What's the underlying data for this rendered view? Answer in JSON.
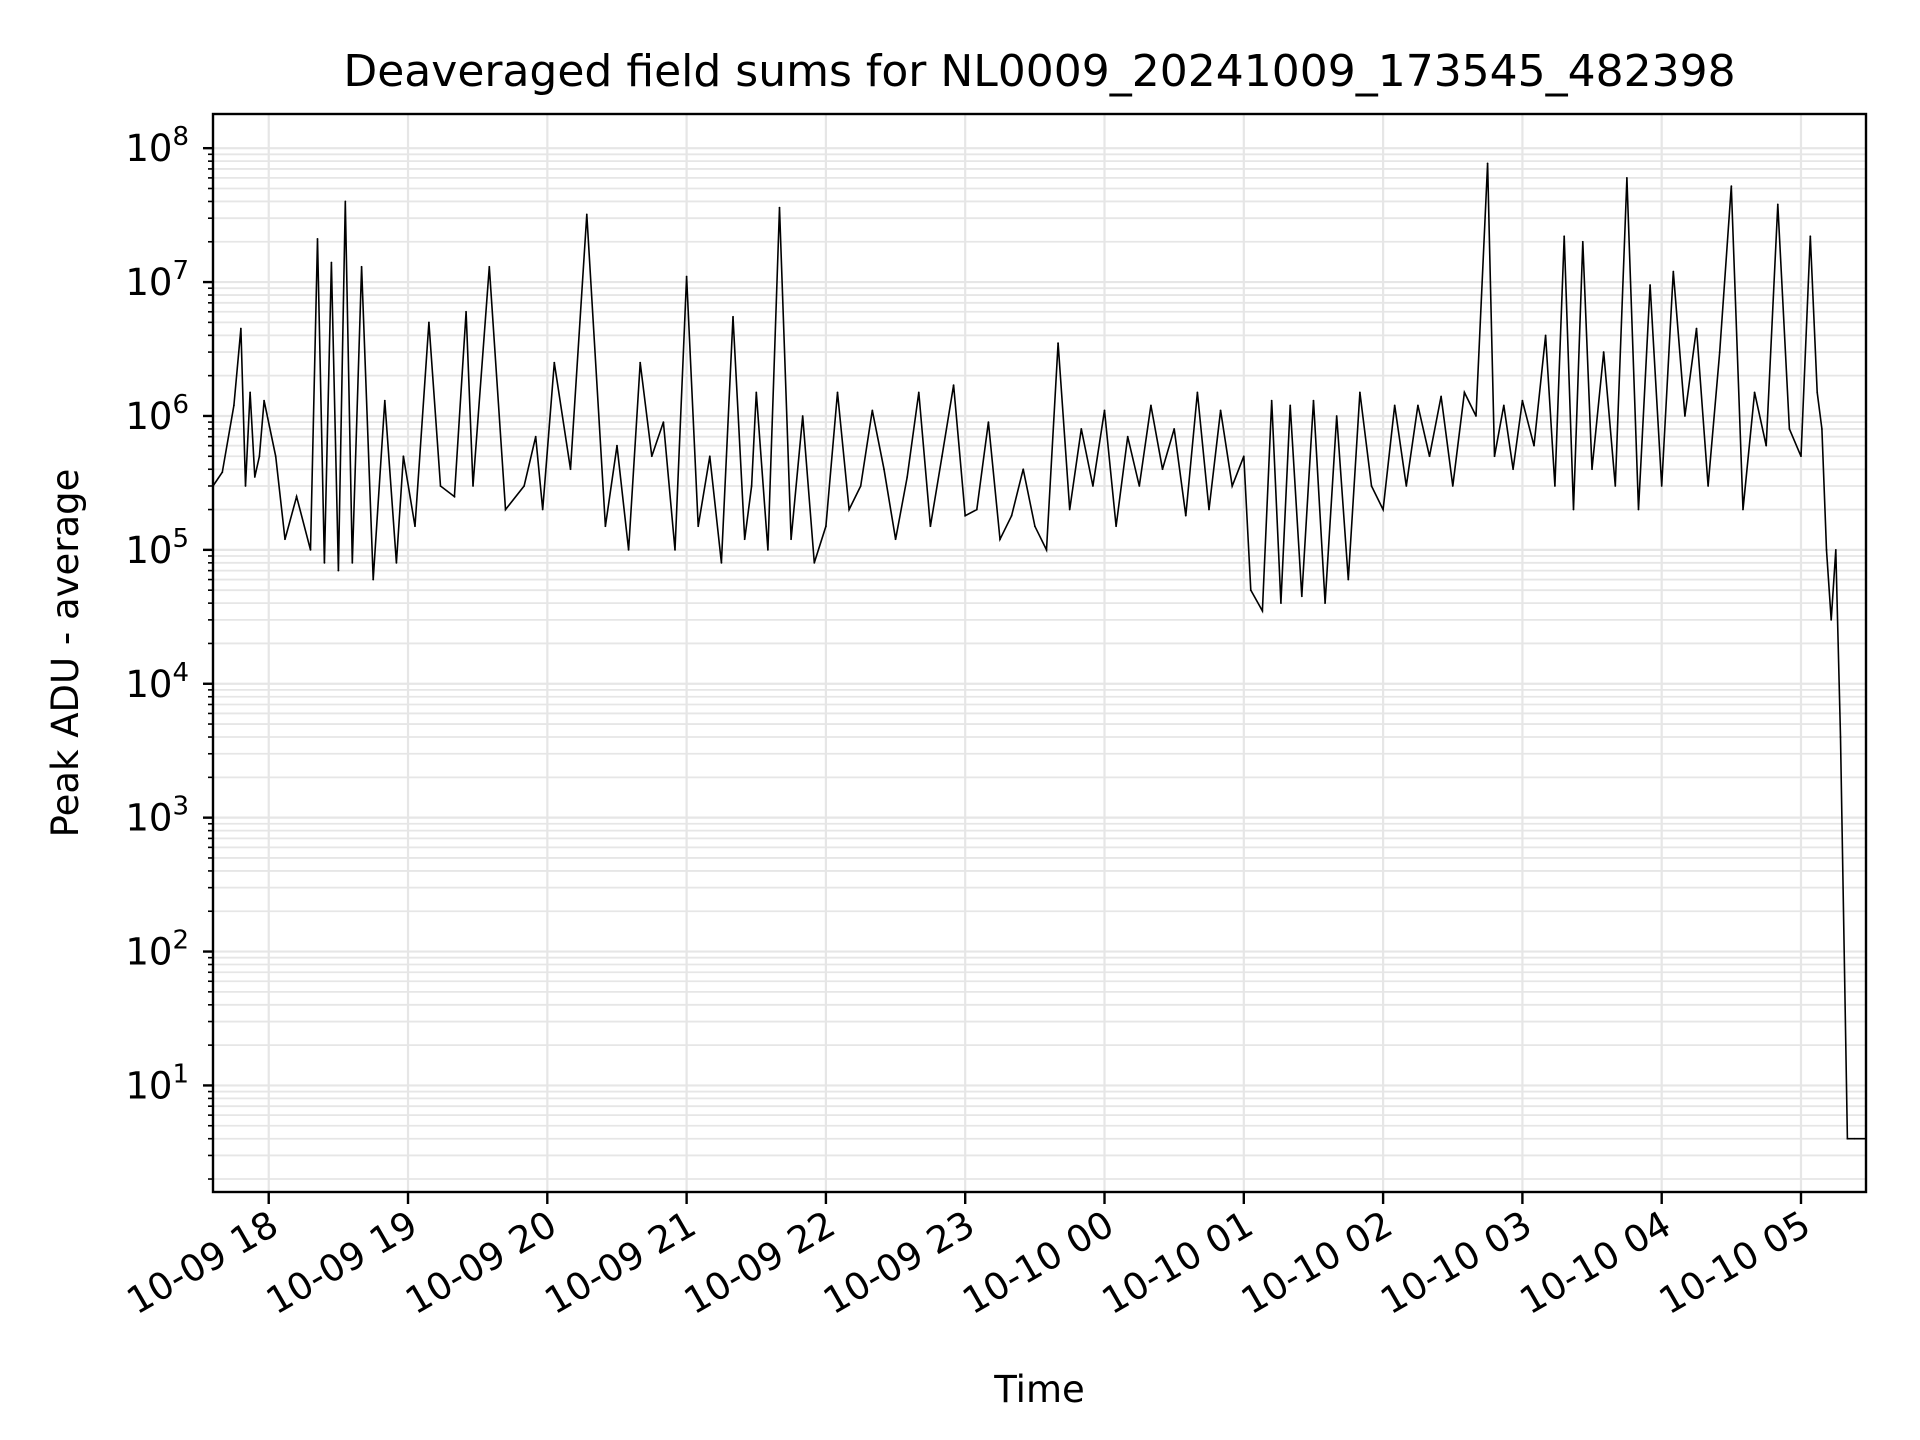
{
  "chart_data": {
    "type": "line",
    "title": "Deaveraged field sums for NL0009_20241009_173545_482398",
    "xlabel": "Time",
    "ylabel": "Peak ADU - average",
    "yscale": "log",
    "ylim": [
      1.6,
      180000000
    ],
    "xlim": [
      "2024-10-09 17:36",
      "2024-10-10 05:28"
    ],
    "grid": true,
    "line_color": "#000000",
    "grid_color": "#e6e6e6",
    "x_ticks": [
      {
        "label": "10-09 18",
        "t": "2024-10-09 18:00"
      },
      {
        "label": "10-09 19",
        "t": "2024-10-09 19:00"
      },
      {
        "label": "10-09 20",
        "t": "2024-10-09 20:00"
      },
      {
        "label": "10-09 21",
        "t": "2024-10-09 21:00"
      },
      {
        "label": "10-09 22",
        "t": "2024-10-09 22:00"
      },
      {
        "label": "10-09 23",
        "t": "2024-10-09 23:00"
      },
      {
        "label": "10-10 00",
        "t": "2024-10-10 00:00"
      },
      {
        "label": "10-10 01",
        "t": "2024-10-10 01:00"
      },
      {
        "label": "10-10 02",
        "t": "2024-10-10 02:00"
      },
      {
        "label": "10-10 03",
        "t": "2024-10-10 03:00"
      },
      {
        "label": "10-10 04",
        "t": "2024-10-10 04:00"
      },
      {
        "label": "10-10 05",
        "t": "2024-10-10 05:00"
      }
    ],
    "y_ticks": [
      {
        "base": "10",
        "exp": "1",
        "value": 10
      },
      {
        "base": "10",
        "exp": "2",
        "value": 100
      },
      {
        "base": "10",
        "exp": "3",
        "value": 1000
      },
      {
        "base": "10",
        "exp": "4",
        "value": 10000
      },
      {
        "base": "10",
        "exp": "5",
        "value": 100000
      },
      {
        "base": "10",
        "exp": "6",
        "value": 1000000
      },
      {
        "base": "10",
        "exp": "7",
        "value": 10000000
      },
      {
        "base": "10",
        "exp": "8",
        "value": 100000000
      }
    ],
    "series": [
      {
        "x": [
          "2024-10-09 17:36",
          "2024-10-09 17:40",
          "2024-10-09 17:45",
          "2024-10-09 17:48",
          "2024-10-09 17:50",
          "2024-10-09 17:52",
          "2024-10-09 17:54",
          "2024-10-09 17:56",
          "2024-10-09 17:58",
          "2024-10-09 18:03",
          "2024-10-09 18:07",
          "2024-10-09 18:12",
          "2024-10-09 18:18",
          "2024-10-09 18:21",
          "2024-10-09 18:24",
          "2024-10-09 18:27",
          "2024-10-09 18:30",
          "2024-10-09 18:33",
          "2024-10-09 18:36",
          "2024-10-09 18:40",
          "2024-10-09 18:45",
          "2024-10-09 18:50",
          "2024-10-09 18:55",
          "2024-10-09 18:58",
          "2024-10-09 19:03",
          "2024-10-09 19:09",
          "2024-10-09 19:14",
          "2024-10-09 19:20",
          "2024-10-09 19:25",
          "2024-10-09 19:28",
          "2024-10-09 19:35",
          "2024-10-09 19:42",
          "2024-10-09 19:50",
          "2024-10-09 19:55",
          "2024-10-09 19:58",
          "2024-10-09 20:03",
          "2024-10-09 20:10",
          "2024-10-09 20:17",
          "2024-10-09 20:25",
          "2024-10-09 20:30",
          "2024-10-09 20:35",
          "2024-10-09 20:40",
          "2024-10-09 20:45",
          "2024-10-09 20:50",
          "2024-10-09 20:55",
          "2024-10-09 21:00",
          "2024-10-09 21:05",
          "2024-10-09 21:10",
          "2024-10-09 21:15",
          "2024-10-09 21:20",
          "2024-10-09 21:25",
          "2024-10-09 21:28",
          "2024-10-09 21:30",
          "2024-10-09 21:35",
          "2024-10-09 21:40",
          "2024-10-09 21:45",
          "2024-10-09 21:50",
          "2024-10-09 21:55",
          "2024-10-09 22:00",
          "2024-10-09 22:05",
          "2024-10-09 22:10",
          "2024-10-09 22:15",
          "2024-10-09 22:20",
          "2024-10-09 22:25",
          "2024-10-09 22:30",
          "2024-10-09 22:35",
          "2024-10-09 22:40",
          "2024-10-09 22:45",
          "2024-10-09 22:50",
          "2024-10-09 22:55",
          "2024-10-09 23:00",
          "2024-10-09 23:05",
          "2024-10-09 23:10",
          "2024-10-09 23:15",
          "2024-10-09 23:20",
          "2024-10-09 23:25",
          "2024-10-09 23:30",
          "2024-10-09 23:35",
          "2024-10-09 23:40",
          "2024-10-09 23:45",
          "2024-10-09 23:50",
          "2024-10-09 23:55",
          "2024-10-10 00:00",
          "2024-10-10 00:05",
          "2024-10-10 00:10",
          "2024-10-10 00:15",
          "2024-10-10 00:20",
          "2024-10-10 00:25",
          "2024-10-10 00:30",
          "2024-10-10 00:35",
          "2024-10-10 00:40",
          "2024-10-10 00:45",
          "2024-10-10 00:50",
          "2024-10-10 00:55",
          "2024-10-10 01:00",
          "2024-10-10 01:03",
          "2024-10-10 01:08",
          "2024-10-10 01:12",
          "2024-10-10 01:16",
          "2024-10-10 01:20",
          "2024-10-10 01:25",
          "2024-10-10 01:30",
          "2024-10-10 01:35",
          "2024-10-10 01:40",
          "2024-10-10 01:45",
          "2024-10-10 01:50",
          "2024-10-10 01:55",
          "2024-10-10 02:00",
          "2024-10-10 02:05",
          "2024-10-10 02:10",
          "2024-10-10 02:15",
          "2024-10-10 02:20",
          "2024-10-10 02:25",
          "2024-10-10 02:30",
          "2024-10-10 02:35",
          "2024-10-10 02:40",
          "2024-10-10 02:45",
          "2024-10-10 02:48",
          "2024-10-10 02:52",
          "2024-10-10 02:56",
          "2024-10-10 03:00",
          "2024-10-10 03:05",
          "2024-10-10 03:10",
          "2024-10-10 03:14",
          "2024-10-10 03:18",
          "2024-10-10 03:22",
          "2024-10-10 03:26",
          "2024-10-10 03:30",
          "2024-10-10 03:35",
          "2024-10-10 03:40",
          "2024-10-10 03:45",
          "2024-10-10 03:50",
          "2024-10-10 03:55",
          "2024-10-10 04:00",
          "2024-10-10 04:05",
          "2024-10-10 04:10",
          "2024-10-10 04:15",
          "2024-10-10 04:20",
          "2024-10-10 04:25",
          "2024-10-10 04:30",
          "2024-10-10 04:35",
          "2024-10-10 04:40",
          "2024-10-10 04:45",
          "2024-10-10 04:50",
          "2024-10-10 04:55",
          "2024-10-10 05:00",
          "2024-10-10 05:04",
          "2024-10-10 05:07",
          "2024-10-10 05:09",
          "2024-10-10 05:11",
          "2024-10-10 05:13",
          "2024-10-10 05:15",
          "2024-10-10 05:17",
          "2024-10-10 05:20",
          "2024-10-10 05:23",
          "2024-10-10 05:28"
        ],
        "y": [
          300000,
          380000,
          1200000,
          4500000,
          300000,
          1500000,
          350000,
          500000,
          1300000,
          500000,
          120000,
          250000,
          100000,
          21000000,
          80000,
          14000000,
          70000,
          40000000,
          80000,
          13000000,
          60000,
          1300000,
          80000,
          500000,
          150000,
          5000000,
          300000,
          250000,
          6000000,
          300000,
          13000000,
          200000,
          300000,
          700000,
          200000,
          2500000,
          400000,
          32000000,
          150000,
          600000,
          100000,
          2500000,
          500000,
          900000,
          100000,
          11000000,
          150000,
          500000,
          80000,
          5500000,
          120000,
          300000,
          1500000,
          100000,
          36000000,
          120000,
          1000000,
          80000,
          150000,
          1500000,
          200000,
          300000,
          1100000,
          400000,
          120000,
          350000,
          1500000,
          150000,
          500000,
          1700000,
          180000,
          200000,
          900000,
          120000,
          180000,
          400000,
          150000,
          100000,
          3500000,
          200000,
          800000,
          300000,
          1100000,
          150000,
          700000,
          300000,
          1200000,
          400000,
          800000,
          180000,
          1500000,
          200000,
          1100000,
          300000,
          500000,
          50000,
          35000,
          1300000,
          40000,
          1200000,
          45000,
          1300000,
          40000,
          1000000,
          60000,
          1500000,
          300000,
          200000,
          1200000,
          300000,
          1200000,
          500000,
          1400000,
          300000,
          1500000,
          1000000,
          77000000,
          500000,
          1200000,
          400000,
          1300000,
          600000,
          4000000,
          300000,
          22000000,
          200000,
          20000000,
          400000,
          3000000,
          300000,
          60000000,
          200000,
          9500000,
          300000,
          12000000,
          1000000,
          4500000,
          300000,
          3000000,
          52000000,
          200000,
          1500000,
          600000,
          38000000,
          800000,
          500000,
          22000000,
          1500000,
          800000,
          100000,
          30000,
          100000,
          4000,
          4,
          4,
          4
        ]
      }
    ]
  }
}
